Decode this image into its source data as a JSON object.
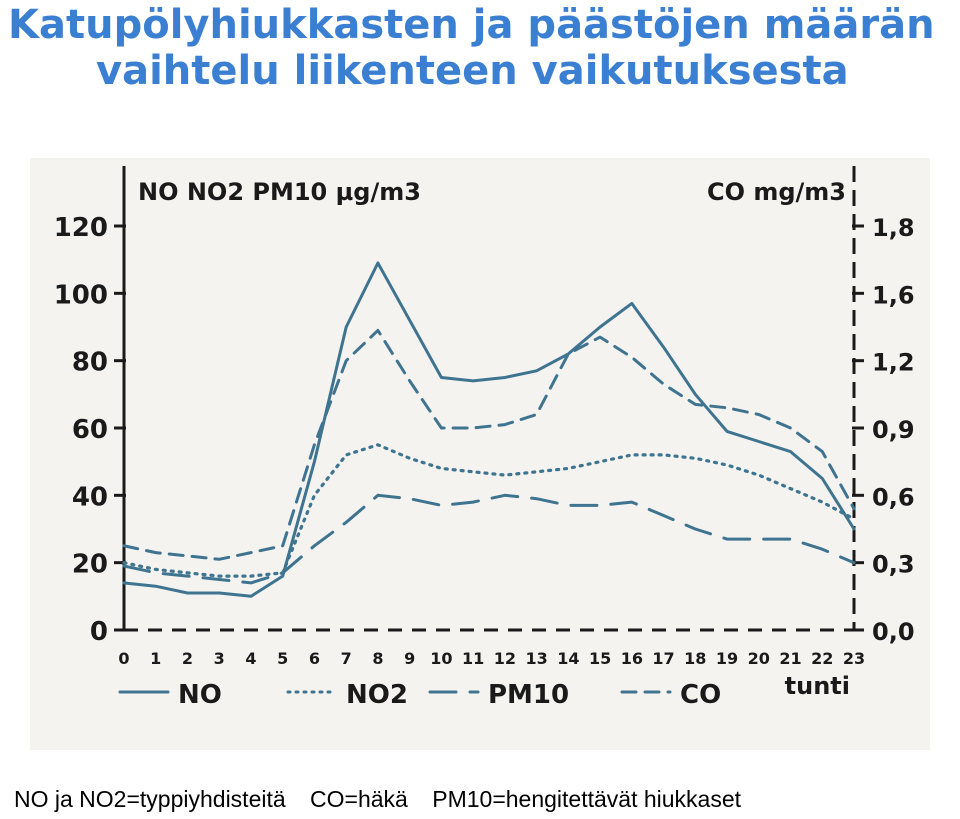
{
  "page": {
    "title_line1": "Katupölyhiukkasten ja päästöjen määrän",
    "title_line2": "vaihtelu liikenteen vaikutuksesta",
    "footer": [
      "NO ja NO2=typpiyhdisteitä",
      "CO=häkä",
      "PM10=hengitettävät hiukkaset"
    ]
  },
  "chart_data": {
    "type": "line",
    "left_axis_label": "NO NO2 PM10 µg/m3",
    "right_axis_label": "CO mg/m3",
    "xlabel": "tunti",
    "x": [
      0,
      1,
      2,
      3,
      4,
      5,
      6,
      7,
      8,
      9,
      10,
      11,
      12,
      13,
      14,
      15,
      16,
      17,
      18,
      19,
      20,
      21,
      22,
      23
    ],
    "xlim": [
      0,
      23
    ],
    "left_ticks": [
      "0",
      "20",
      "40",
      "60",
      "80",
      "100",
      "120"
    ],
    "right_ticks": [
      "0,0",
      "0,3",
      "0,6",
      "0,9",
      "1,2",
      "1,6",
      "1,8"
    ],
    "ylim_left": [
      0,
      120
    ],
    "grid": false,
    "legend_position": "bottom",
    "colors": {
      "series": "#3f7490",
      "axis": "#1a1a1a"
    },
    "series": [
      {
        "name": "NO",
        "style": "solid",
        "values": [
          14,
          13,
          11,
          11,
          10,
          16,
          50,
          90,
          109,
          92,
          75,
          74,
          75,
          77,
          82,
          90,
          97,
          84,
          70,
          59,
          56,
          53,
          45,
          30
        ]
      },
      {
        "name": "NO2",
        "style": "dotted",
        "values": [
          20,
          18,
          17,
          16,
          16,
          17,
          40,
          52,
          55,
          51,
          48,
          47,
          46,
          47,
          48,
          50,
          52,
          52,
          51,
          49,
          46,
          42,
          38,
          33
        ]
      },
      {
        "name": "PM10",
        "style": "longdash",
        "values": [
          19,
          17,
          16,
          15,
          14,
          17,
          25,
          32,
          40,
          39,
          37,
          38,
          40,
          39,
          37,
          37,
          38,
          34,
          30,
          27,
          27,
          27,
          24,
          20
        ]
      },
      {
        "name": "CO",
        "style": "dash",
        "values": [
          25,
          23,
          22,
          21,
          23,
          25,
          55,
          80,
          89,
          74,
          60,
          60,
          61,
          64,
          82,
          87,
          81,
          73,
          67,
          66,
          64,
          60,
          53,
          36
        ]
      }
    ]
  }
}
